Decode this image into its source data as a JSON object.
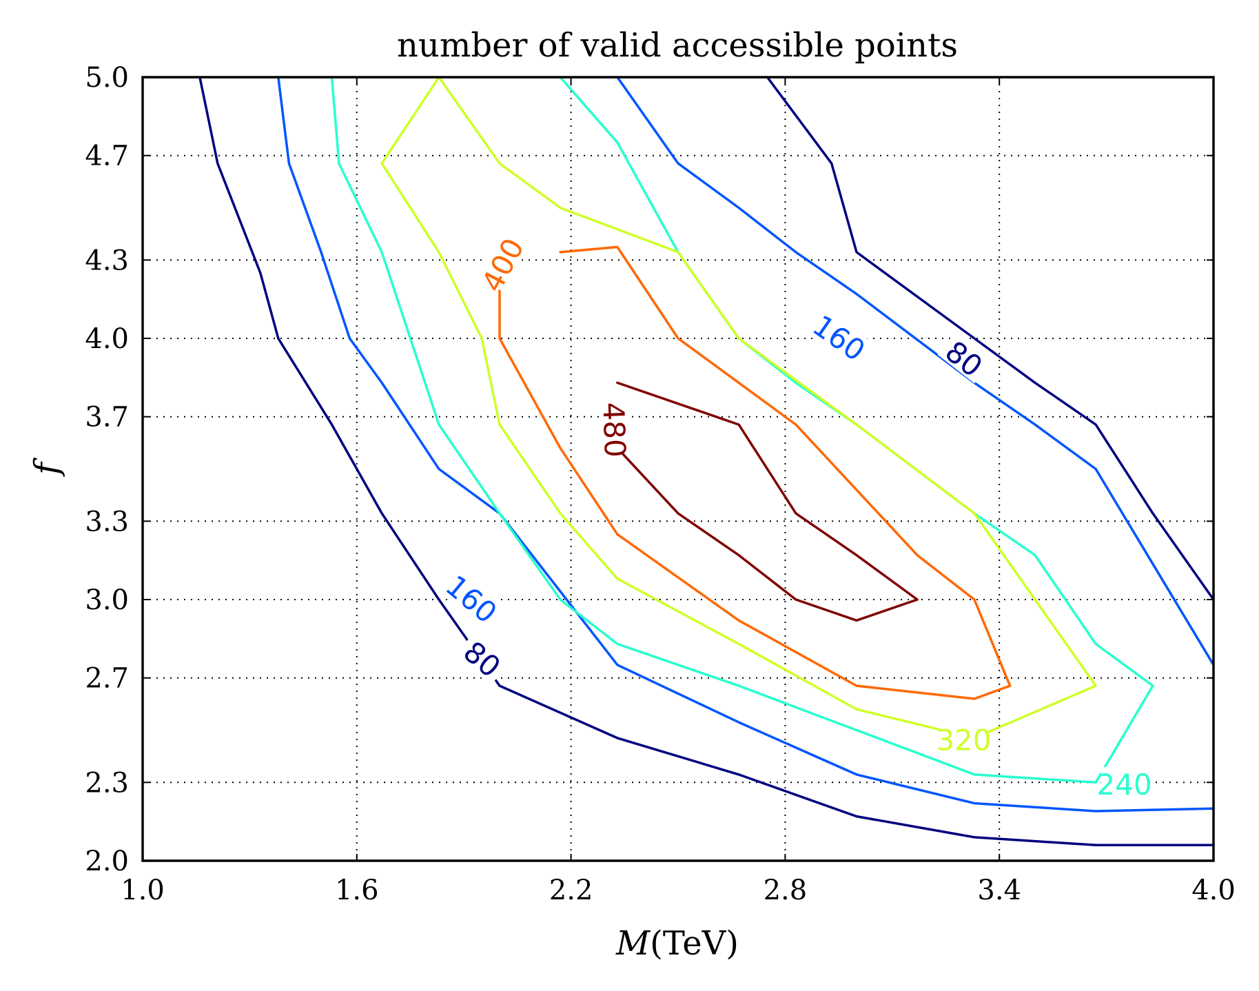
{
  "chart_data": {
    "type": "contour",
    "title": "number of valid accessible points",
    "xlabel": "M(TeV)",
    "ylabel": "f",
    "xlim": [
      1.0,
      4.0
    ],
    "ylim": [
      2.0,
      5.0
    ],
    "x_ticks": [
      "1.0",
      "1.6",
      "2.2",
      "2.8",
      "3.4",
      "4.0"
    ],
    "y_ticks": [
      "2.0",
      "2.3",
      "2.7",
      "3.0",
      "3.3",
      "3.7",
      "4.0",
      "4.3",
      "4.7",
      "5.0"
    ],
    "grid": true,
    "levels": [
      {
        "level": 80,
        "color": "#000080",
        "labels": [
          "80",
          "80"
        ],
        "lines": [
          [
            [
              1.16,
              5.0
            ],
            [
              1.21,
              4.67
            ],
            [
              1.33,
              4.25
            ],
            [
              1.38,
              4.0
            ],
            [
              1.53,
              3.67
            ],
            [
              1.67,
              3.33
            ],
            [
              1.83,
              3.0
            ],
            [
              2.0,
              2.67
            ],
            [
              2.33,
              2.47
            ],
            [
              2.67,
              2.33
            ],
            [
              3.0,
              2.17
            ],
            [
              3.33,
              2.09
            ],
            [
              3.67,
              2.06
            ],
            [
              4.0,
              2.06
            ]
          ],
          [
            [
              2.75,
              5.0
            ],
            [
              2.93,
              4.67
            ],
            [
              3.0,
              4.33
            ],
            [
              3.33,
              4.0
            ],
            [
              3.5,
              3.83
            ],
            [
              3.67,
              3.67
            ],
            [
              3.83,
              3.33
            ],
            [
              4.0,
              3.0
            ]
          ]
        ]
      },
      {
        "level": 160,
        "color": "#0055ff",
        "labels": [
          "160",
          "160"
        ],
        "lines": [
          [
            [
              1.38,
              5.0
            ],
            [
              1.41,
              4.67
            ],
            [
              1.5,
              4.33
            ],
            [
              1.58,
              4.0
            ],
            [
              1.67,
              3.83
            ],
            [
              1.83,
              3.5
            ],
            [
              2.0,
              3.33
            ],
            [
              2.33,
              2.75
            ],
            [
              2.67,
              2.53
            ],
            [
              3.0,
              2.33
            ],
            [
              3.33,
              2.22
            ],
            [
              3.67,
              2.19
            ],
            [
              4.0,
              2.2
            ]
          ],
          [
            [
              2.33,
              5.0
            ],
            [
              2.5,
              4.67
            ],
            [
              2.67,
              4.5
            ],
            [
              2.83,
              4.33
            ],
            [
              3.0,
              4.17
            ],
            [
              3.33,
              3.83
            ],
            [
              3.5,
              3.67
            ],
            [
              3.67,
              3.5
            ],
            [
              4.0,
              2.75
            ]
          ]
        ]
      },
      {
        "level": 240,
        "color": "#29ffce",
        "labels": [
          "240"
        ],
        "lines": [
          [
            [
              1.53,
              5.0
            ],
            [
              1.55,
              4.67
            ],
            [
              1.67,
              4.33
            ],
            [
              1.83,
              3.67
            ],
            [
              2.0,
              3.33
            ],
            [
              2.17,
              3.0
            ],
            [
              2.33,
              2.83
            ],
            [
              2.67,
              2.67
            ],
            [
              3.0,
              2.5
            ],
            [
              3.33,
              2.33
            ],
            [
              3.67,
              2.3
            ],
            [
              3.83,
              2.67
            ],
            [
              3.67,
              2.83
            ],
            [
              3.5,
              3.17
            ],
            [
              3.33,
              3.33
            ],
            [
              3.0,
              3.67
            ],
            [
              2.83,
              3.83
            ],
            [
              2.67,
              4.0
            ],
            [
              2.5,
              4.33
            ],
            [
              2.33,
              4.75
            ],
            [
              2.17,
              5.0
            ]
          ]
        ]
      },
      {
        "level": 320,
        "color": "#ceff29",
        "labels": [
          "320"
        ],
        "lines": [
          [
            [
              1.83,
              5.0
            ],
            [
              1.67,
              4.67
            ],
            [
              1.83,
              4.33
            ],
            [
              1.95,
              4.0
            ],
            [
              2.0,
              3.67
            ],
            [
              2.17,
              3.33
            ],
            [
              2.33,
              3.08
            ],
            [
              2.67,
              2.83
            ],
            [
              3.0,
              2.58
            ],
            [
              3.33,
              2.47
            ],
            [
              3.67,
              2.67
            ],
            [
              3.5,
              3.0
            ],
            [
              3.33,
              3.33
            ],
            [
              3.0,
              3.67
            ],
            [
              2.67,
              4.0
            ],
            [
              2.5,
              4.33
            ],
            [
              2.17,
              4.5
            ],
            [
              2.0,
              4.67
            ],
            [
              1.83,
              5.0
            ]
          ]
        ]
      },
      {
        "level": 400,
        "color": "#ff6800",
        "labels": [
          "400"
        ],
        "lines": [
          [
            [
              2.17,
              4.33
            ],
            [
              2.33,
              4.35
            ],
            [
              2.5,
              4.0
            ],
            [
              2.67,
              3.83
            ],
            [
              2.83,
              3.67
            ],
            [
              3.0,
              3.42
            ],
            [
              3.17,
              3.17
            ],
            [
              3.33,
              3.0
            ],
            [
              3.43,
              2.67
            ],
            [
              3.33,
              2.62
            ],
            [
              3.0,
              2.67
            ],
            [
              2.67,
              2.92
            ],
            [
              2.33,
              3.25
            ],
            [
              2.17,
              3.58
            ],
            [
              2.0,
              4.0
            ],
            [
              2.0,
              4.2
            ]
          ]
        ]
      },
      {
        "level": 480,
        "color": "#800000",
        "labels": [
          "480"
        ],
        "lines": [
          [
            [
              2.33,
              3.58
            ],
            [
              2.5,
              3.33
            ],
            [
              2.67,
              3.17
            ],
            [
              2.83,
              3.0
            ],
            [
              3.0,
              2.92
            ],
            [
              3.17,
              3.0
            ],
            [
              3.0,
              3.17
            ],
            [
              2.83,
              3.33
            ],
            [
              2.67,
              3.67
            ],
            [
              2.33,
              3.83
            ],
            [
              2.33,
              3.83
            ]
          ]
        ]
      }
    ]
  }
}
